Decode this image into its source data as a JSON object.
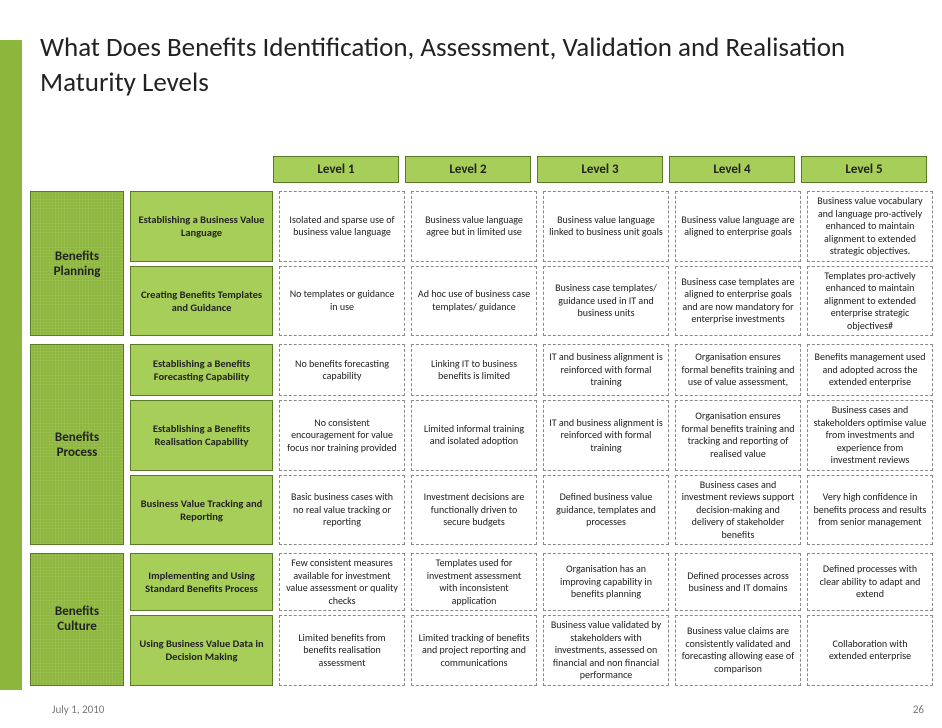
{
  "title": "What Does Benefits Identification, Assessment, Validation and Realisation Maturity Levels",
  "footer": {
    "date": "July 1, 2010",
    "page": "26"
  },
  "levels": [
    "Level 1",
    "Level 2",
    "Level 3",
    "Level 4",
    "Level 5"
  ],
  "colors": {
    "section_bg": "#8cb63c",
    "process_bg": "#a8ce5a",
    "border": "#5a7a28",
    "dashed_border": "#888888",
    "title_color": "#222222",
    "footer_color": "#777777"
  },
  "sections": [
    {
      "label": "Benefits Planning",
      "rows": [
        {
          "process": "Establishing a Business Value Language",
          "cells": [
            "Isolated and sparse use of business value language",
            "Business value language agree but in limited use",
            "Business value language linked to business unit goals",
            "Business value language are aligned to enterprise goals",
            "Business value vocabulary and language pro-actively enhanced to maintain alignment to extended strategic objectives."
          ]
        },
        {
          "process": "Creating Benefits Templates and Guidance",
          "cells": [
            "No templates or guidance in use",
            "Ad hoc use of business case templates/ guidance",
            "Business case templates/ guidance used in IT and business units",
            "Business case templates are aligned to enterprise goals and are now mandatory for enterprise investments",
            "Templates pro-actively enhanced to maintain alignment to extended enterprise strategic objectives#"
          ]
        }
      ]
    },
    {
      "label": "Benefits Process",
      "rows": [
        {
          "process": "Establishing a Benefits Forecasting Capability",
          "cells": [
            "No benefits forecasting capability",
            "Linking IT to business benefits is limited",
            "IT and business alignment is reinforced with formal training",
            "Organisation ensures formal benefits training and use of value assessment,",
            "Benefits management used and adopted across the extended enterprise"
          ]
        },
        {
          "process": "Establishing a Benefits Realisation Capability",
          "cells": [
            "No consistent encouragement for value focus nor training provided",
            "Limited informal training and isolated adoption",
            "IT and business alignment is reinforced with formal training",
            "Organisation ensures formal benefits training and tracking and reporting of realised value",
            "Business cases and stakeholders optimise value from investments and experience from investment reviews"
          ]
        },
        {
          "process": "Business Value Tracking and Reporting",
          "cells": [
            "Basic business cases with no real value tracking or reporting",
            "Investment decisions are functionally driven to secure budgets",
            "Defined business value guidance, templates and processes",
            "Business cases and investment reviews support decision-making and delivery of stakeholder benefits",
            "Very high confidence in benefits process and results from senior management"
          ]
        }
      ]
    },
    {
      "label": "Benefits Culture",
      "rows": [
        {
          "process": "Implementing and Using Standard Benefits Process",
          "cells": [
            "Few consistent measures available for investment value assessment or quality checks",
            "Templates used for investment assessment with inconsistent application",
            "Organisation has an improving capability in benefits planning",
            "Defined processes across business and IT domains",
            "Defined processes with clear ability to adapt and extend"
          ]
        },
        {
          "process": "Using Business Value Data in Decision Making",
          "cells": [
            "Limited benefits from benefits realisation assessment",
            "Limited tracking of benefits and project reporting and communications",
            "Business value validated by stakeholders with investments, assessed on financial and non financial performance",
            "Business value claims are consistently validated and forecasting allowing ease of comparison",
            "Collaboration with extended enterprise"
          ]
        }
      ]
    }
  ]
}
